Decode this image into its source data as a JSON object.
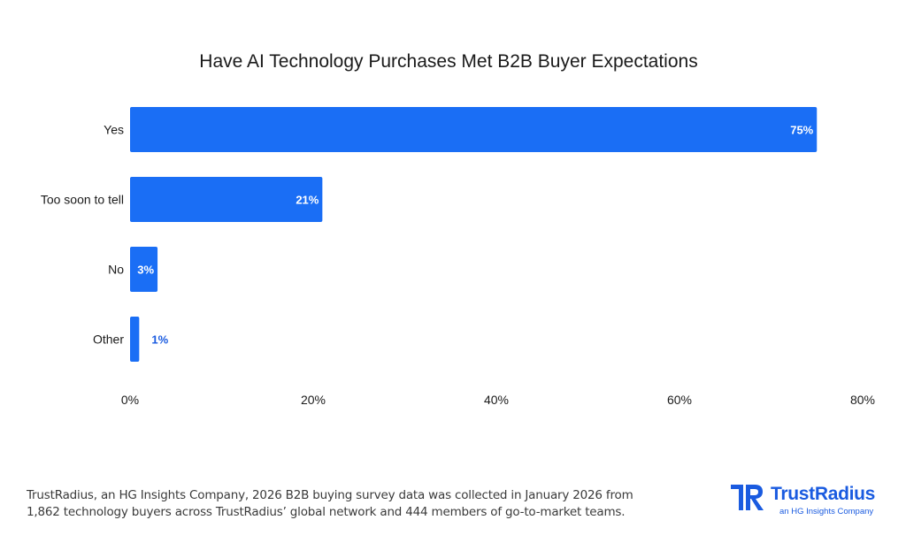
{
  "chart_data": {
    "type": "bar",
    "orientation": "horizontal",
    "title": "Have AI Technology Purchases Met B2B Buyer Expectations",
    "categories": [
      "Yes",
      "Too soon to tell",
      "No",
      "Other"
    ],
    "values": [
      75,
      21,
      3,
      1
    ],
    "data_labels": [
      "75%",
      "21%",
      "3%",
      "1%"
    ],
    "xlim": [
      0,
      80
    ],
    "x_ticks": [
      0,
      20,
      40,
      60,
      80
    ],
    "x_tick_labels": [
      "0%",
      "20%",
      "40%",
      "60%",
      "80%"
    ],
    "grid": false,
    "bar_color": "#1a6ef5",
    "label_inside_color": "#ffffff",
    "label_outside_color": "#1a5be0"
  },
  "footnote": {
    "line1": "TrustRadius, an HG Insights Company, 2026 B2B buying survey data was collected in January 2026 from",
    "line2": "1,862 technology buyers across TrustRadius’ global network and 444 members of go-to-market teams."
  },
  "brand": {
    "logo_icon": "trustradius-logo-icon",
    "name": "TrustRadius",
    "tagline": "an HG Insights Company",
    "color": "#1a5be0"
  }
}
